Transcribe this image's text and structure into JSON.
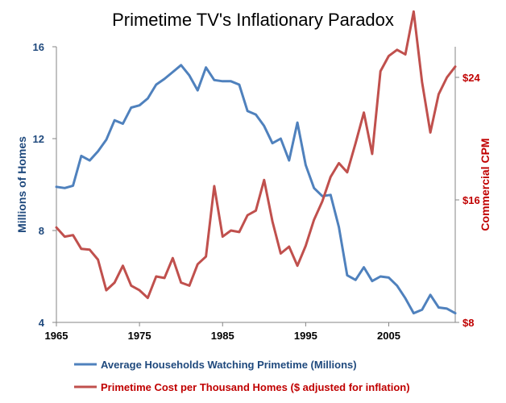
{
  "chart_data": {
    "type": "line",
    "title": "Primetime TV's Inflationary Paradox",
    "xlabel": "",
    "ylabel": "Millions of Homes",
    "y2label": "Commercial CPM",
    "xlim": [
      1965,
      2013
    ],
    "ylim": [
      4,
      16
    ],
    "y2lim": [
      8,
      26
    ],
    "x_ticks": [
      1965,
      1975,
      1985,
      1995,
      2005
    ],
    "x_tick_labels": [
      "1965",
      "1975",
      "1985",
      "1995",
      "2005"
    ],
    "y_ticks": [
      4,
      8,
      12,
      16
    ],
    "y_tick_labels": [
      "4",
      "8",
      "12",
      "16"
    ],
    "y2_ticks": [
      8,
      16,
      24
    ],
    "y2_tick_labels": [
      "$8",
      "$16",
      "$24"
    ],
    "series": [
      {
        "name": "Average Households Watching Primetime (Millions)",
        "axis": "left",
        "color": "#4f81bd",
        "x": [
          1965,
          1966,
          1967,
          1968,
          1969,
          1970,
          1971,
          1972,
          1973,
          1974,
          1975,
          1976,
          1977,
          1978,
          1979,
          1980,
          1981,
          1982,
          1983,
          1984,
          1985,
          1986,
          1987,
          1988,
          1989,
          1990,
          1991,
          1992,
          1993,
          1994,
          1995,
          1996,
          1997,
          1998,
          1999,
          2000,
          2001,
          2002,
          2003,
          2004,
          2005,
          2006,
          2007,
          2008,
          2009,
          2010,
          2011,
          2012,
          2013
        ],
        "values": [
          9.9,
          9.85,
          9.95,
          11.25,
          11.05,
          11.45,
          11.95,
          12.8,
          12.65,
          13.35,
          13.45,
          13.75,
          14.35,
          14.6,
          14.9,
          15.2,
          14.75,
          14.1,
          15.1,
          14.55,
          14.5,
          14.5,
          14.35,
          13.2,
          13.05,
          12.55,
          11.8,
          12.0,
          11.05,
          12.7,
          10.85,
          9.85,
          9.5,
          9.55,
          8.15,
          6.05,
          5.85,
          6.4,
          5.8,
          6.0,
          5.95,
          5.6,
          5.05,
          4.4,
          4.55,
          5.2,
          4.65,
          4.6,
          4.4
        ]
      },
      {
        "name": "Primetime Cost per Thousand Homes ($ adjusted for inflation)",
        "axis": "right",
        "color": "#c0504d",
        "x": [
          1965,
          1966,
          1967,
          1968,
          1969,
          1970,
          1971,
          1972,
          1973,
          1974,
          1975,
          1976,
          1977,
          1978,
          1979,
          1980,
          1981,
          1982,
          1983,
          1984,
          1985,
          1986,
          1987,
          1988,
          1989,
          1990,
          1991,
          1992,
          1993,
          1994,
          1995,
          1996,
          1997,
          1998,
          1999,
          2000,
          2001,
          2002,
          2003,
          2004,
          2005,
          2006,
          2007,
          2008,
          2009,
          2010,
          2011,
          2012,
          2013
        ],
        "values": [
          14.2,
          13.6,
          13.7,
          12.8,
          12.75,
          12.1,
          10.1,
          10.6,
          11.7,
          10.4,
          10.1,
          9.6,
          11.0,
          10.9,
          12.2,
          10.6,
          10.4,
          11.8,
          12.3,
          16.9,
          13.6,
          14.0,
          13.9,
          15.0,
          15.3,
          17.3,
          14.6,
          12.5,
          12.95,
          11.7,
          13.0,
          14.7,
          15.9,
          17.5,
          18.4,
          17.8,
          19.7,
          21.7,
          19.0,
          24.4,
          25.4,
          25.8,
          25.5,
          28.3,
          23.7,
          20.4,
          22.9,
          24.0,
          24.7
        ]
      }
    ],
    "legend": [
      {
        "label": "Average Households Watching Primetime (Millions)",
        "color": "#4f81bd"
      },
      {
        "label": "Primetime Cost per Thousand Homes ($ adjusted for inflation)",
        "color": "#c0504d"
      }
    ],
    "legend_position": "bottom",
    "grid": false,
    "colors": {
      "left_axis": "#1f497d",
      "right_axis": "#c00000",
      "axis_line": "#868686"
    }
  }
}
